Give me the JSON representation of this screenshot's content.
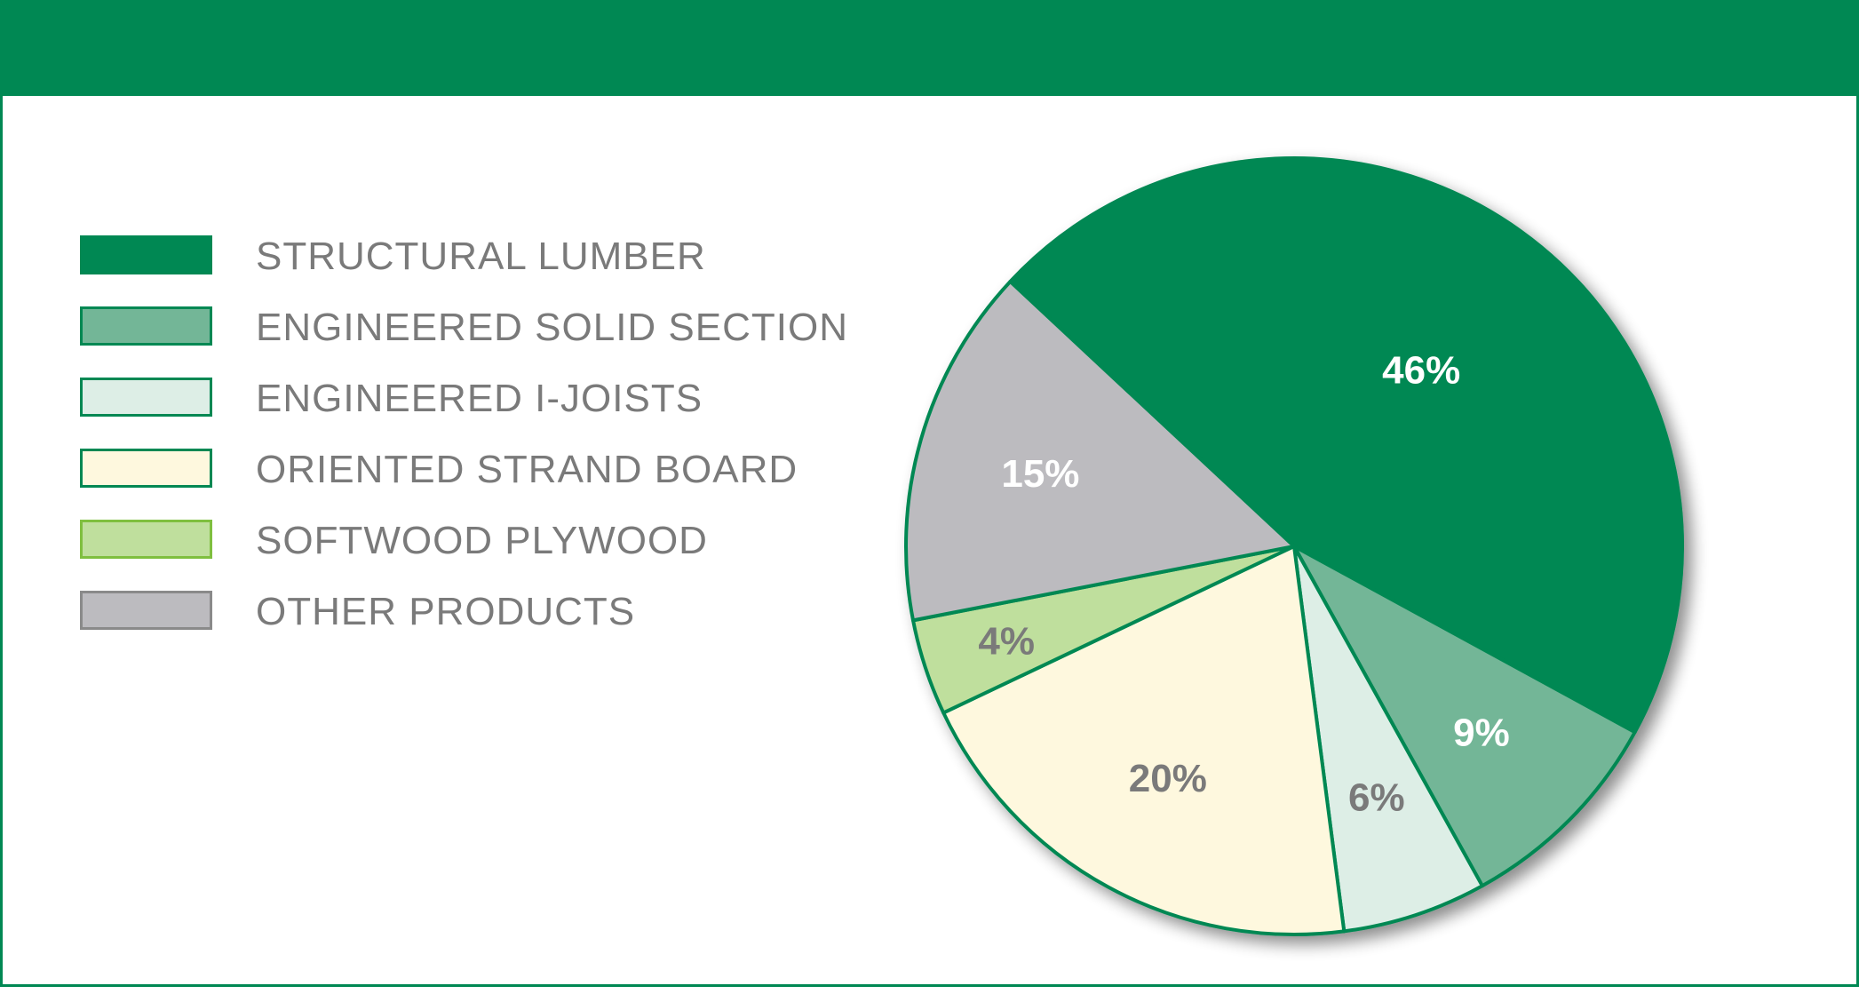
{
  "chart_data": {
    "type": "pie",
    "title": "",
    "slices": [
      {
        "label": "STRUCTURAL LUMBER",
        "value": 46,
        "value_label": "46%",
        "color": "#008853",
        "label_color": "#ffffff"
      },
      {
        "label": "ENGINEERED SOLID SECTION",
        "value": 9,
        "value_label": "9%",
        "color": "#73b697",
        "label_color": "#ffffff"
      },
      {
        "label": "ENGINEERED I-JOISTS",
        "value": 6,
        "value_label": "6%",
        "color": "#ddeee6",
        "label_color": "#7a7a7a"
      },
      {
        "label": "ORIENTED STRAND BOARD",
        "value": 20,
        "value_label": "20%",
        "color": "#fef8de",
        "label_color": "#7a7a7a"
      },
      {
        "label": "SOFTWOOD PLYWOOD",
        "value": 4,
        "value_label": "4%",
        "color": "#bfdf9d",
        "label_color": "#7a7a7a"
      },
      {
        "label": "OTHER PRODUCTS",
        "value": 15,
        "value_label": "15%",
        "color": "#bcbbbf",
        "label_color": "#ffffff"
      }
    ],
    "legend_position": "left",
    "slice_order": "clockwise starting upper-left",
    "outline_color": "#008853"
  },
  "legend": {
    "items": [
      {
        "label": "STRUCTURAL LUMBER",
        "color": "#008853",
        "border": "#008853"
      },
      {
        "label": "ENGINEERED SOLID SECTION",
        "color": "#73b697",
        "border": "#008853"
      },
      {
        "label": "ENGINEERED I-JOISTS",
        "color": "#ddeee6",
        "border": "#008853"
      },
      {
        "label": "ORIENTED STRAND BOARD",
        "color": "#fef8de",
        "border": "#008853"
      },
      {
        "label": "SOFTWOOD PLYWOOD",
        "color": "#bfdf9d",
        "border": "#7fbf3f"
      },
      {
        "label": "OTHER PRODUCTS",
        "color": "#bcbbbf",
        "border": "#8a8a8a"
      }
    ]
  },
  "colors": {
    "accent": "#008853",
    "label_gray": "#7a7a7a"
  }
}
